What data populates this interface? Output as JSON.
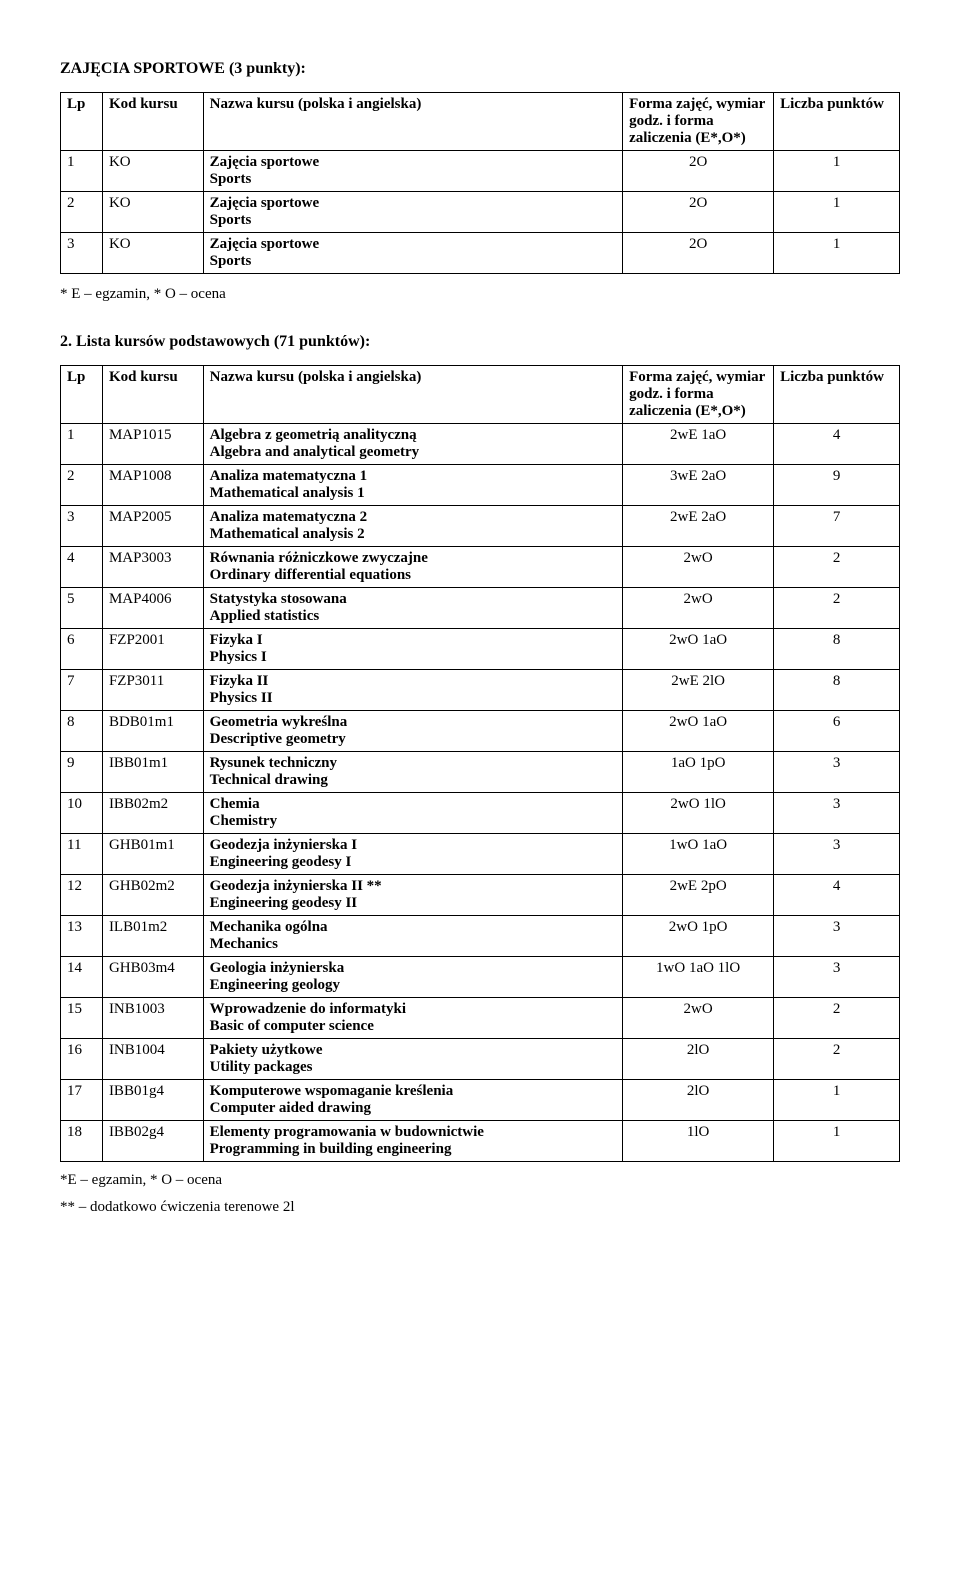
{
  "section1": {
    "title": "ZAJĘCIA SPORTOWE (3 punkty):",
    "headers": {
      "lp": "Lp",
      "kod": "Kod kursu",
      "nazwa": "Nazwa kursu (polska i angielska)",
      "forma": "Forma zajęć, wymiar godz. i forma zaliczenia (E*,O*)",
      "liczba": "Liczba punktów"
    },
    "rows": [
      {
        "lp": "1",
        "kod": "KO",
        "pl": "Zajęcia sportowe",
        "en": "Sports",
        "forma": "2O",
        "pkt": "1"
      },
      {
        "lp": "2",
        "kod": "KO",
        "pl": "Zajęcia sportowe",
        "en": "Sports",
        "forma": "2O",
        "pkt": "1"
      },
      {
        "lp": "3",
        "kod": "KO",
        "pl": "Zajęcia sportowe",
        "en": "Sports",
        "forma": "2O",
        "pkt": "1"
      }
    ],
    "note": "* E – egzamin, * O – ocena"
  },
  "section2": {
    "title": "2. Lista kursów podstawowych (71 punktów):",
    "headers": {
      "lp": "Lp",
      "kod": "Kod kursu",
      "nazwa": "Nazwa kursu (polska i angielska)",
      "forma": "Forma zajęć, wymiar godz. i forma zaliczenia (E*,O*)",
      "liczba": "Liczba punktów"
    },
    "rows": [
      {
        "lp": "1",
        "kod": "MAP1015",
        "pl": "Algebra z geometrią analityczną",
        "en": "Algebra and analytical geometry",
        "forma": "2wE 1aO",
        "pkt": "4"
      },
      {
        "lp": "2",
        "kod": "MAP1008",
        "pl": "Analiza matematyczna 1",
        "en": "Mathematical analysis 1",
        "forma": "3wE 2aO",
        "pkt": "9"
      },
      {
        "lp": "3",
        "kod": "MAP2005",
        "pl": "Analiza matematyczna 2",
        "en": "Mathematical analysis 2",
        "forma": "2wE 2aO",
        "pkt": "7"
      },
      {
        "lp": "4",
        "kod": "MAP3003",
        "pl": "Równania różniczkowe zwyczajne",
        "en": "Ordinary differential equations",
        "forma": "2wO",
        "pkt": "2"
      },
      {
        "lp": "5",
        "kod": "MAP4006",
        "pl": "Statystyka stosowana",
        "en": "Applied statistics",
        "forma": "2wO",
        "pkt": "2"
      },
      {
        "lp": "6",
        "kod": "FZP2001",
        "pl": "Fizyka I",
        "en": "Physics I",
        "forma": "2wO 1aO",
        "pkt": "8"
      },
      {
        "lp": "7",
        "kod": "FZP3011",
        "pl": "Fizyka II",
        "en": "Physics II",
        "forma": "2wE 2lO",
        "pkt": "8"
      },
      {
        "lp": "8",
        "kod": "BDB01m1",
        "pl": "Geometria wykreślna",
        "en": "Descriptive geometry",
        "forma": "2wO 1aO",
        "pkt": "6"
      },
      {
        "lp": "9",
        "kod": "IBB01m1",
        "pl": "Rysunek techniczny",
        "en": "Technical drawing",
        "forma": "1aO 1pO",
        "pkt": "3"
      },
      {
        "lp": "10",
        "kod": "IBB02m2",
        "pl": "Chemia",
        "en": "Chemistry",
        "forma": "2wO 1lO",
        "pkt": "3"
      },
      {
        "lp": "11",
        "kod": "GHB01m1",
        "pl": "Geodezja inżynierska I",
        "en": "Engineering geodesy I",
        "forma": "1wO 1aO",
        "pkt": "3"
      },
      {
        "lp": "12",
        "kod": "GHB02m2",
        "pl": "Geodezja inżynierska II **",
        "en": "Engineering geodesy II",
        "forma": "2wE 2pO",
        "pkt": "4"
      },
      {
        "lp": "13",
        "kod": "ILB01m2",
        "pl": "Mechanika ogólna",
        "en": "Mechanics",
        "forma": "2wO 1pO",
        "pkt": "3"
      },
      {
        "lp": "14",
        "kod": "GHB03m4",
        "pl": "Geologia inżynierska",
        "en": "Engineering geology",
        "forma": "1wO 1aO 1lO",
        "pkt": "3"
      },
      {
        "lp": "15",
        "kod": "INB1003",
        "pl": "Wprowadzenie do informatyki",
        "en": "Basic of computer science",
        "forma": "2wO",
        "pkt": "2"
      },
      {
        "lp": "16",
        "kod": "INB1004",
        "pl": "Pakiety użytkowe",
        "en": "Utility packages",
        "forma": "2lO",
        "pkt": "2"
      },
      {
        "lp": "17",
        "kod": "IBB01g4",
        "pl": "Komputerowe wspomaganie kreślenia",
        "en": "Computer aided drawing",
        "forma": "2lO",
        "pkt": "1"
      },
      {
        "lp": "18",
        "kod": "IBB02g4",
        "pl": "Elementy programowania w budownictwie",
        "en": "Programming in building engineering",
        "forma": "1lO",
        "pkt": "1"
      }
    ],
    "footnote1": "*E – egzamin, * O – ocena",
    "footnote2": "** – dodatkowo ćwiczenia terenowe 2l"
  }
}
